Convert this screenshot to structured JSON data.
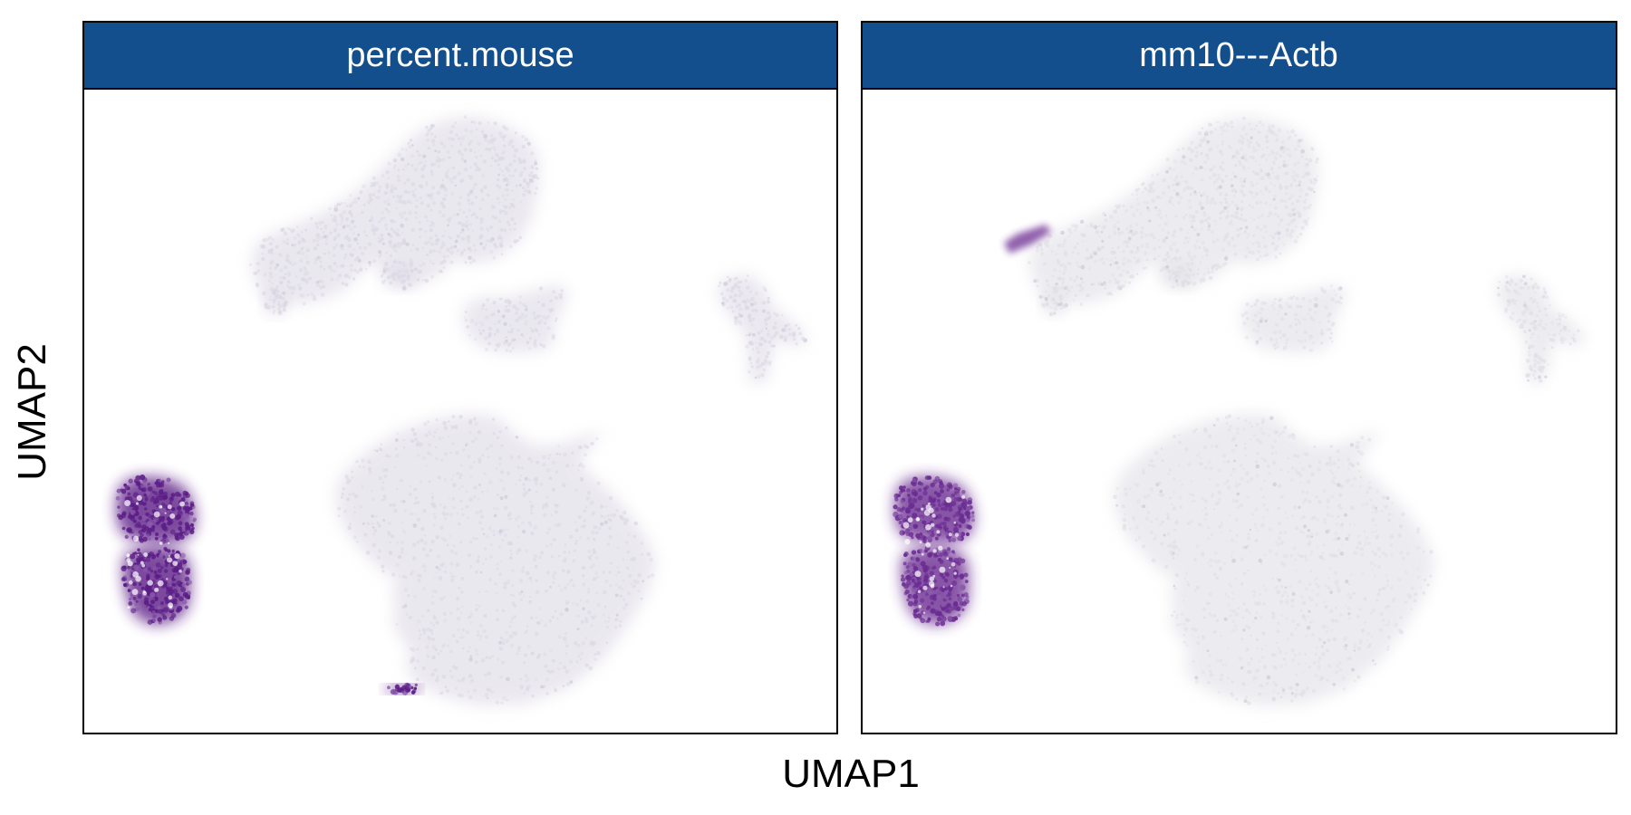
{
  "chart_data": [
    {
      "type": "scatter",
      "title": "percent.mouse",
      "xlabel": "UMAP1",
      "ylabel": "UMAP2",
      "x_ticks": false,
      "y_ticks": false,
      "grid": false,
      "point_colors": {
        "low": "#dad6e3",
        "high": "#5b1d86"
      },
      "clusters": [
        {
          "id": "top-large",
          "center": [
            -1.4,
            7.8
          ],
          "level": "low"
        },
        {
          "id": "middle-small",
          "center": [
            0.5,
            3.8
          ],
          "level": "low"
        },
        {
          "id": "right-small",
          "center": [
            6.9,
            4.0
          ],
          "level": "low"
        },
        {
          "id": "bottom-large",
          "center": [
            0.9,
            -4.2
          ],
          "level": "low"
        },
        {
          "id": "left-dense",
          "center": [
            -7.2,
            -3.6
          ],
          "level": "high"
        },
        {
          "id": "bottom-edge",
          "center": [
            -2.8,
            -9.9
          ],
          "level": "high"
        }
      ]
    },
    {
      "type": "scatter",
      "title": "mm10---Actb",
      "xlabel": "UMAP1",
      "ylabel": "UMAP2",
      "x_ticks": false,
      "y_ticks": false,
      "grid": false,
      "point_colors": {
        "low": "#dddde4",
        "high": "#6a2c91"
      },
      "clusters": [
        {
          "id": "top-large",
          "center": [
            -1.4,
            7.8
          ],
          "level": "low"
        },
        {
          "id": "middle-small",
          "center": [
            0.5,
            3.8
          ],
          "level": "low"
        },
        {
          "id": "right-small",
          "center": [
            6.9,
            4.0
          ],
          "level": "low"
        },
        {
          "id": "bottom-large",
          "center": [
            0.9,
            -4.2
          ],
          "level": "low"
        },
        {
          "id": "left-dense",
          "center": [
            -7.2,
            -3.6
          ],
          "level": "high"
        },
        {
          "id": "top-streak",
          "center": [
            -3.0,
            8.8
          ],
          "level": "medium"
        }
      ]
    }
  ],
  "colors": {
    "strip_fill": "#134f8c",
    "strip_text": "#ffffff",
    "panel_border": "#000000"
  }
}
